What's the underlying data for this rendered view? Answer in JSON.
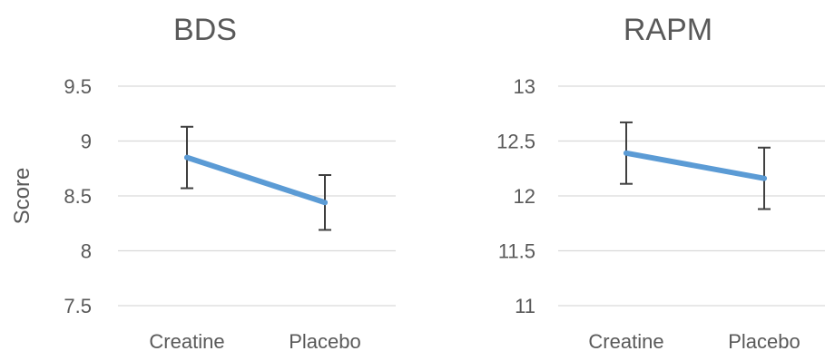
{
  "chart_data": [
    {
      "type": "line",
      "title": "BDS",
      "xlabel": "",
      "ylabel": "Score",
      "categories": [
        "Creatine",
        "Placebo"
      ],
      "series": [
        {
          "values": [
            8.85,
            8.44
          ],
          "error_low": [
            8.57,
            8.19
          ],
          "error_high": [
            9.13,
            8.69
          ]
        }
      ],
      "ylim": [
        7.5,
        9.5
      ],
      "yticks": [
        "7.5",
        "8",
        "8.5",
        "9",
        "9.5"
      ],
      "grid": true,
      "legend": "none",
      "color": "#5b9bd5"
    },
    {
      "type": "line",
      "title": "RAPM",
      "xlabel": "",
      "ylabel": "",
      "categories": [
        "Creatine",
        "Placebo"
      ],
      "series": [
        {
          "values": [
            12.39,
            12.16
          ],
          "error_low": [
            12.11,
            11.88
          ],
          "error_high": [
            12.67,
            12.44
          ]
        }
      ],
      "ylim": [
        11,
        13
      ],
      "yticks": [
        "11",
        "11.5",
        "12",
        "12.5",
        "13"
      ],
      "grid": true,
      "legend": "none",
      "color": "#5b9bd5"
    }
  ]
}
